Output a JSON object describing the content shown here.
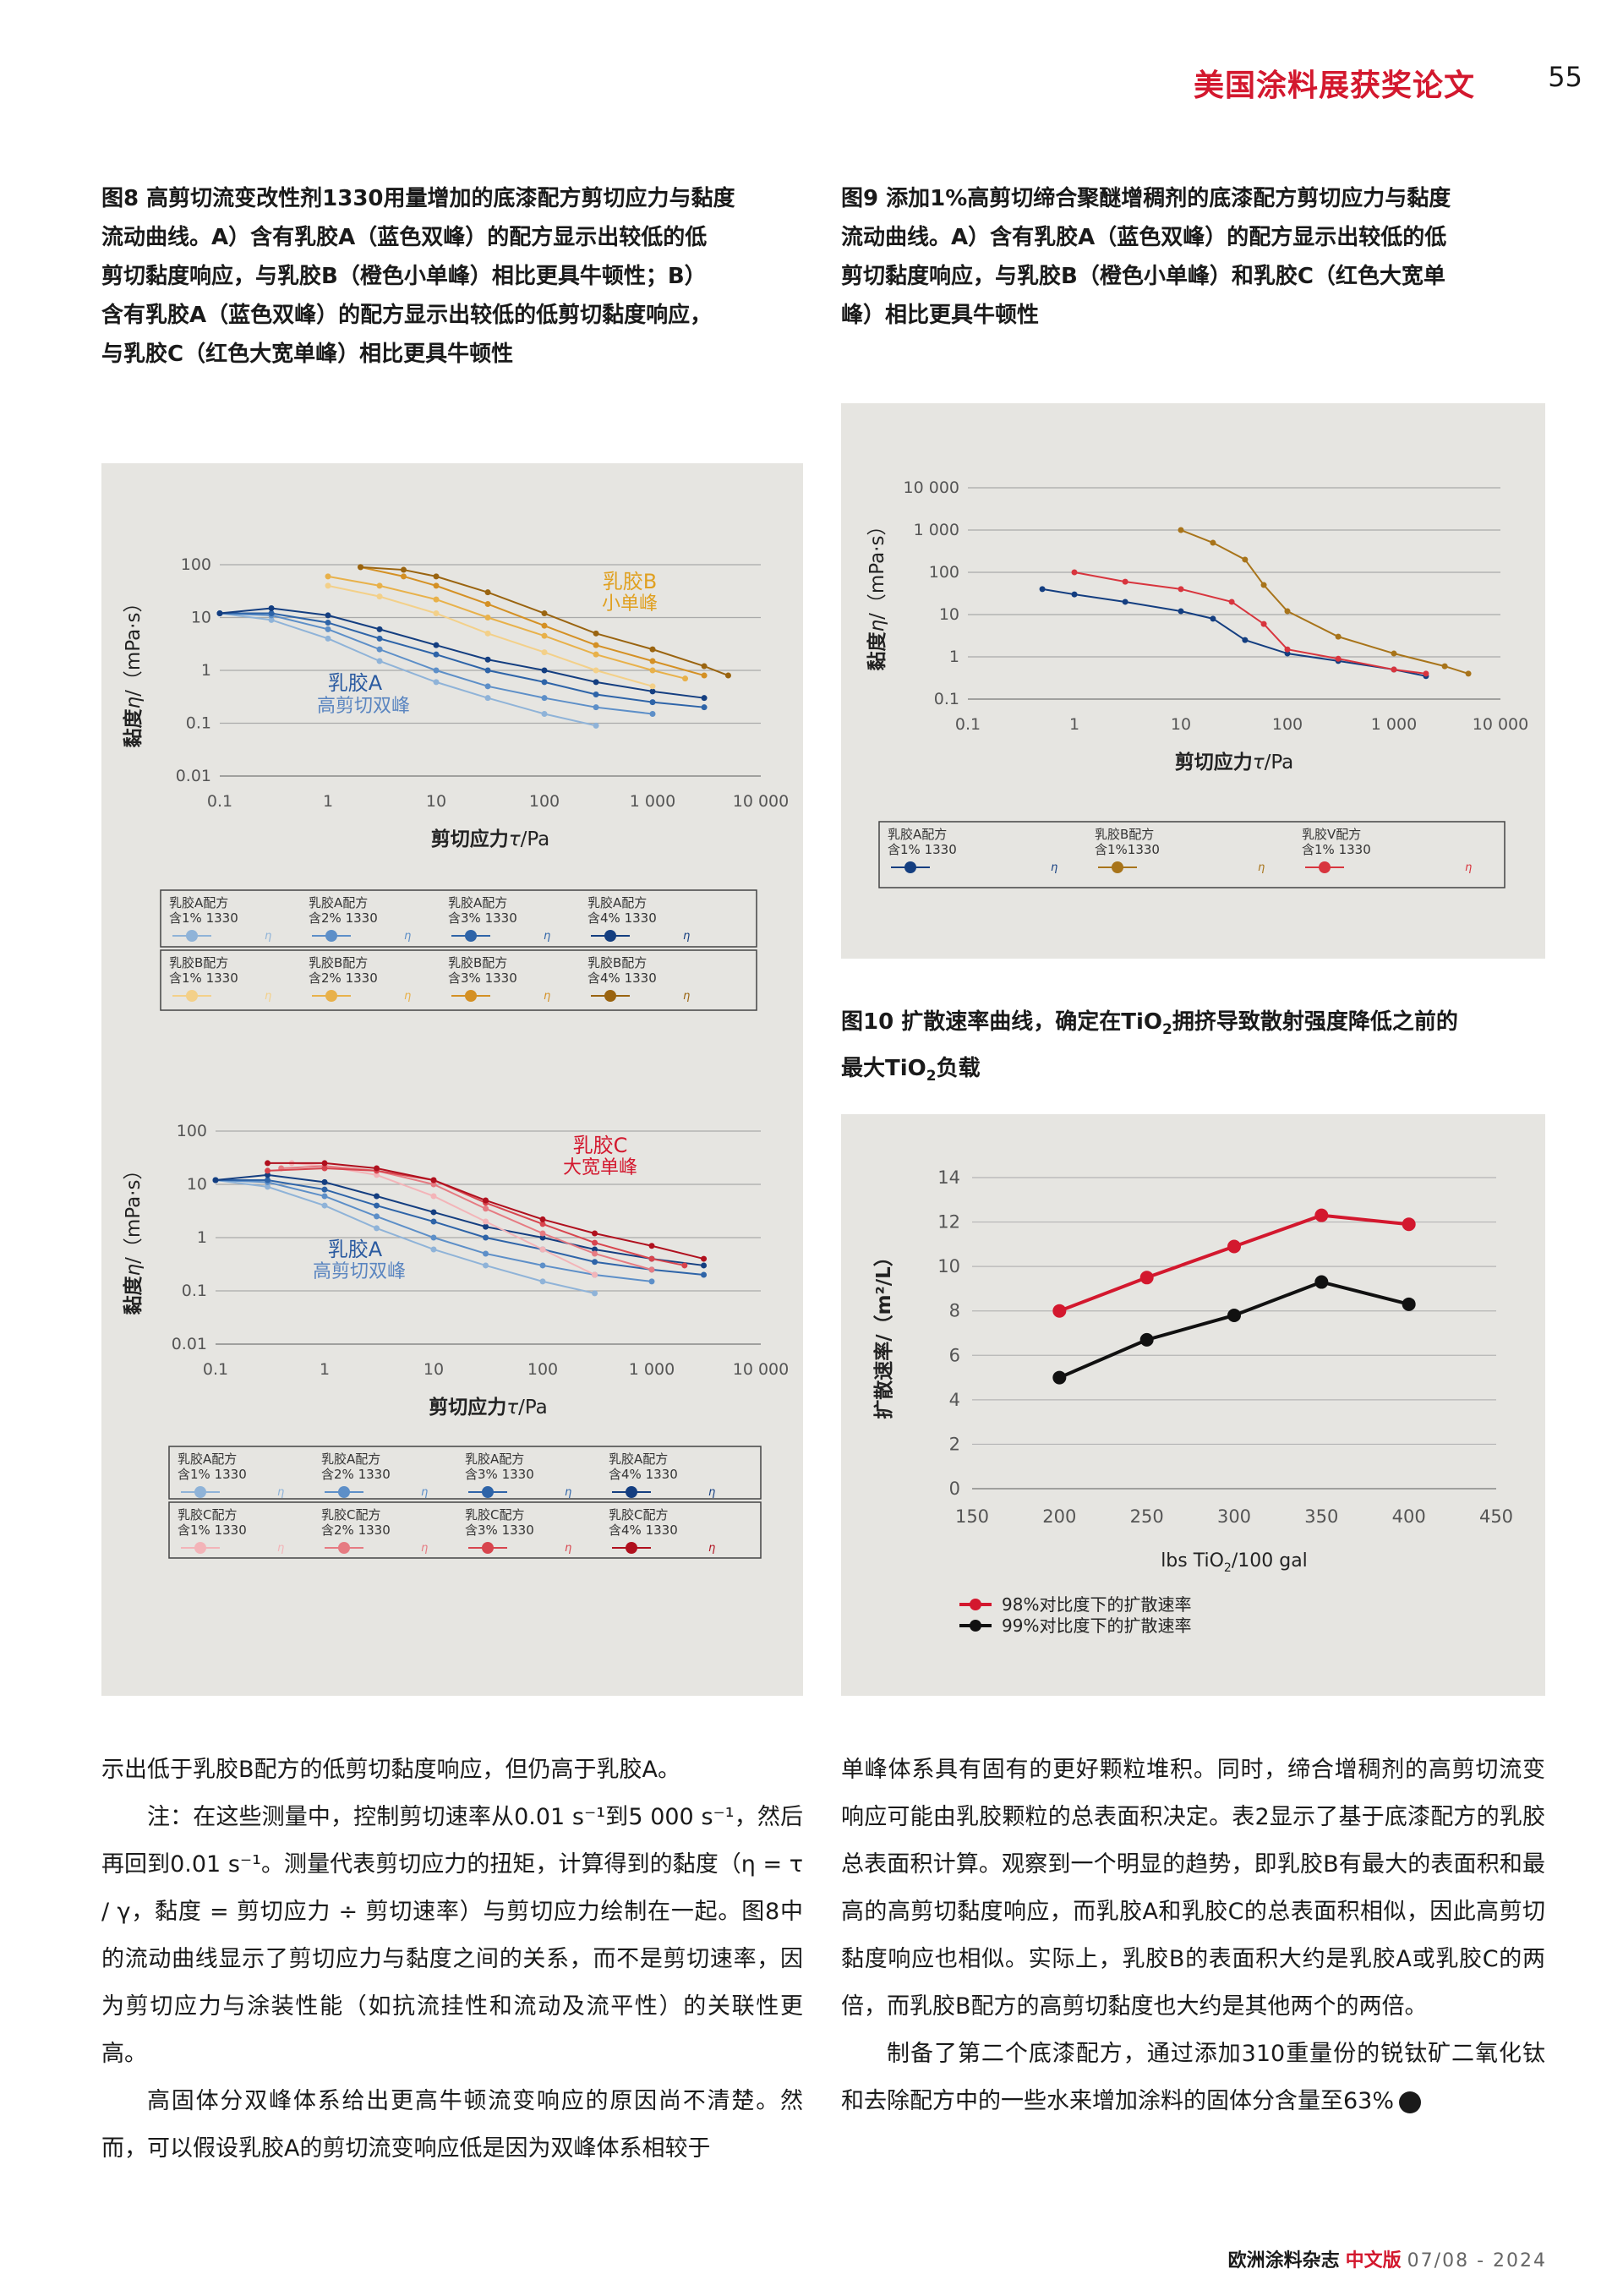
{
  "header": {
    "title": "美国涂料展获奖论文",
    "page_number": "55"
  },
  "fig8": {
    "caption_lines": [
      "图8 高剪切流变改性剂1330用量增加的底漆配方剪切应力与黏度",
      "流动曲线。A）含有乳胶A（蓝色双峰）的配方显示出较低的低",
      "剪切黏度响应，与乳胶B（橙色小单峰）相比更具牛顿性；B）",
      "含有乳胶A（蓝色双峰）的配方显示出较低的低剪切黏度响应，",
      "与乳胶C（红色大宽单峰）相比更具牛顿性"
    ]
  },
  "fig9": {
    "caption_lines": [
      "图9 添加1%高剪切缔合聚醚增稠剂的底漆配方剪切应力与黏度",
      "流动曲线。A）含有乳胶A（蓝色双峰）的配方显示出较低的低",
      "剪切黏度响应，与乳胶B（橙色小单峰）和乳胶C（红色大宽单",
      "峰）相比更具牛顿性"
    ]
  },
  "fig10": {
    "caption_line1_pre": "图10 扩散速率曲线，确定在TiO",
    "caption_line1_sub": "2",
    "caption_line1_post": "拥挤导致散射强度降低之前的",
    "caption_line2_pre": "最大TiO",
    "caption_line2_sub": "2",
    "caption_line2_post": "负载"
  },
  "chart_data": [
    {
      "id": "fig8a",
      "type": "line",
      "xscale": "log",
      "yscale": "log",
      "xlim": [
        0.1,
        10000
      ],
      "ylim": [
        0.01,
        100
      ],
      "xticks": [
        "0.1",
        "1",
        "10",
        "100",
        "1 000",
        "10 000"
      ],
      "yticks": [
        "0.01",
        "0.1",
        "1",
        "10",
        "100"
      ],
      "xlabel_pre": "剪切应力",
      "xlabel_sym": "τ",
      "xlabel_post": "/Pa",
      "ylabel_pre": "黏度",
      "ylabel_sym": "η",
      "ylabel_post": "/（mPa·s）",
      "annotations": [
        {
          "text": "乳胶B",
          "color": "#e0a020"
        },
        {
          "text": "小单峰",
          "color": "#e0a020"
        },
        {
          "text": "乳胶A",
          "color": "#2a5aa0"
        },
        {
          "text": "高剪切双峰",
          "color": "#5a85c0"
        }
      ],
      "legend_rows": [
        [
          {
            "name": "乳胶A配方",
            "sub": "含1% 1330",
            "color": "#8fb3d8"
          },
          {
            "name": "乳胶A配方",
            "sub": "含2% 1330",
            "color": "#5d8fc8"
          },
          {
            "name": "乳胶A配方",
            "sub": "含3% 1330",
            "color": "#2e64a8"
          },
          {
            "name": "乳胶A配方",
            "sub": "含4% 1330",
            "color": "#143e80"
          }
        ],
        [
          {
            "name": "乳胶B配方",
            "sub": "含1% 1330",
            "color": "#f3d089"
          },
          {
            "name": "乳胶B配方",
            "sub": "含2% 1330",
            "color": "#e8b14a"
          },
          {
            "name": "乳胶B配方",
            "sub": "含3% 1330",
            "color": "#d49024"
          },
          {
            "name": "乳胶B配方",
            "sub": "含4% 1330",
            "color": "#9a6410"
          }
        ]
      ],
      "legend_marker": "η",
      "series": [
        {
          "color": "#8fb3d8",
          "x": [
            0.1,
            0.3,
            1,
            3,
            10,
            30,
            100,
            300
          ],
          "y": [
            12,
            9,
            4,
            1.5,
            0.6,
            0.3,
            0.15,
            0.09
          ]
        },
        {
          "color": "#5d8fc8",
          "x": [
            0.1,
            0.3,
            1,
            3,
            10,
            30,
            100,
            300,
            1000
          ],
          "y": [
            12,
            11,
            6,
            2.5,
            1,
            0.5,
            0.3,
            0.2,
            0.15
          ]
        },
        {
          "color": "#2e64a8",
          "x": [
            0.1,
            0.3,
            1,
            3,
            10,
            30,
            100,
            300,
            1000,
            3000
          ],
          "y": [
            12,
            12,
            8,
            4,
            2,
            1,
            0.6,
            0.35,
            0.25,
            0.2
          ]
        },
        {
          "color": "#143e80",
          "x": [
            0.1,
            0.3,
            1,
            3,
            10,
            30,
            100,
            300,
            1000,
            3000
          ],
          "y": [
            12,
            15,
            11,
            6,
            3,
            1.6,
            1,
            0.6,
            0.4,
            0.3
          ]
        },
        {
          "color": "#f3d089",
          "x": [
            1,
            3,
            10,
            30,
            100,
            300,
            1000
          ],
          "y": [
            40,
            25,
            12,
            5,
            2.2,
            1,
            0.5
          ]
        },
        {
          "color": "#e8b14a",
          "x": [
            1,
            3,
            10,
            30,
            100,
            300,
            1000,
            2000
          ],
          "y": [
            60,
            40,
            22,
            10,
            4.5,
            2,
            1,
            0.7
          ]
        },
        {
          "color": "#d49024",
          "x": [
            2,
            5,
            10,
            30,
            100,
            300,
            1000,
            3000
          ],
          "y": [
            90,
            60,
            40,
            18,
            7,
            3,
            1.5,
            0.8
          ]
        },
        {
          "color": "#9a6410",
          "x": [
            2,
            5,
            10,
            30,
            100,
            300,
            1000,
            3000,
            5000
          ],
          "y": [
            90,
            80,
            60,
            30,
            12,
            5,
            2.5,
            1.2,
            0.8
          ]
        }
      ]
    },
    {
      "id": "fig8b",
      "type": "line",
      "xscale": "log",
      "yscale": "log",
      "xlim": [
        0.1,
        10000
      ],
      "ylim": [
        0.01,
        100
      ],
      "xticks": [
        "0.1",
        "1",
        "10",
        "100",
        "1 000",
        "10 000"
      ],
      "yticks": [
        "0.01",
        "0.1",
        "1",
        "10",
        "100"
      ],
      "xlabel_pre": "剪切应力",
      "xlabel_sym": "τ",
      "xlabel_post": "/Pa",
      "ylabel_pre": "黏度",
      "ylabel_sym": "η",
      "ylabel_post": "/（mPa·s）",
      "annotations": [
        {
          "text": "乳胶C",
          "color": "#d3182e"
        },
        {
          "text": "大宽单峰",
          "color": "#d3182e"
        },
        {
          "text": "乳胶A",
          "color": "#2a5aa0"
        },
        {
          "text": "高剪切双峰",
          "color": "#5a85c0"
        }
      ],
      "legend_rows": [
        [
          {
            "name": "乳胶A配方",
            "sub": "含1% 1330",
            "color": "#8fb3d8"
          },
          {
            "name": "乳胶A配方",
            "sub": "含2% 1330",
            "color": "#5d8fc8"
          },
          {
            "name": "乳胶A配方",
            "sub": "含3% 1330",
            "color": "#2e64a8"
          },
          {
            "name": "乳胶A配方",
            "sub": "含4% 1330",
            "color": "#143e80"
          }
        ],
        [
          {
            "name": "乳胶C配方",
            "sub": "含1% 1330",
            "color": "#f3b4b8"
          },
          {
            "name": "乳胶C配方",
            "sub": "含2% 1330",
            "color": "#e67b82"
          },
          {
            "name": "乳胶C配方",
            "sub": "含3% 1330",
            "color": "#d8454e"
          },
          {
            "name": "乳胶C配方",
            "sub": "含4% 1330",
            "color": "#b0101e"
          }
        ]
      ],
      "legend_marker": "η",
      "series": [
        {
          "color": "#8fb3d8",
          "x": [
            0.1,
            0.3,
            1,
            3,
            10,
            30,
            100,
            300
          ],
          "y": [
            12,
            9,
            4,
            1.5,
            0.6,
            0.3,
            0.15,
            0.09
          ]
        },
        {
          "color": "#5d8fc8",
          "x": [
            0.1,
            0.3,
            1,
            3,
            10,
            30,
            100,
            300,
            1000
          ],
          "y": [
            12,
            11,
            6,
            2.5,
            1,
            0.5,
            0.3,
            0.2,
            0.15
          ]
        },
        {
          "color": "#2e64a8",
          "x": [
            0.1,
            0.3,
            1,
            3,
            10,
            30,
            100,
            300,
            1000,
            3000
          ],
          "y": [
            12,
            12,
            8,
            4,
            2,
            1,
            0.6,
            0.35,
            0.25,
            0.2
          ]
        },
        {
          "color": "#143e80",
          "x": [
            0.1,
            0.3,
            1,
            3,
            10,
            30,
            100,
            300,
            1000,
            3000
          ],
          "y": [
            12,
            15,
            11,
            6,
            3,
            1.6,
            1,
            0.6,
            0.4,
            0.3
          ]
        },
        {
          "color": "#f3b4b8",
          "x": [
            0.5,
            1,
            3,
            10,
            30,
            100,
            300
          ],
          "y": [
            25,
            22,
            15,
            6,
            2,
            0.6,
            0.2
          ]
        },
        {
          "color": "#e67b82",
          "x": [
            0.4,
            1,
            3,
            10,
            30,
            100,
            300,
            1000
          ],
          "y": [
            20,
            22,
            18,
            10,
            3.5,
            1.2,
            0.5,
            0.25
          ]
        },
        {
          "color": "#d8454e",
          "x": [
            0.3,
            1,
            3,
            10,
            30,
            100,
            300,
            1000,
            2000
          ],
          "y": [
            18,
            20,
            18,
            12,
            4.5,
            1.8,
            0.8,
            0.4,
            0.3
          ]
        },
        {
          "color": "#b0101e",
          "x": [
            0.3,
            1,
            3,
            10,
            30,
            100,
            300,
            1000,
            3000
          ],
          "y": [
            25,
            25,
            20,
            12,
            5,
            2.2,
            1.2,
            0.7,
            0.4
          ]
        }
      ]
    },
    {
      "id": "fig9",
      "type": "line",
      "xscale": "log",
      "yscale": "log",
      "xlim": [
        0.1,
        10000
      ],
      "ylim": [
        0.1,
        10000
      ],
      "xticks": [
        "0.1",
        "1",
        "10",
        "100",
        "1 000",
        "10 000"
      ],
      "yticks": [
        "0.1",
        "1",
        "10",
        "100",
        "1 000",
        "10 000"
      ],
      "xlabel_pre": "剪切应力",
      "xlabel_sym": "τ",
      "xlabel_post": "/Pa",
      "ylabel_pre": "黏度",
      "ylabel_sym": "η",
      "ylabel_post": "/（mPa·s）",
      "legend_rows": [
        [
          {
            "name": "乳胶A配方",
            "sub": "含1% 1330",
            "color": "#143e80"
          },
          {
            "name": "乳胶B配方",
            "sub": "含1%1330",
            "color": "#a8741a"
          },
          {
            "name": "乳胶V配方",
            "sub": "含1% 1330",
            "color": "#d8353e"
          }
        ]
      ],
      "legend_marker": "η",
      "series": [
        {
          "color": "#143e80",
          "x": [
            0.5,
            1,
            3,
            10,
            20,
            40,
            100,
            300,
            1000,
            2000
          ],
          "y": [
            40,
            30,
            20,
            12,
            8,
            2.5,
            1.2,
            0.8,
            0.5,
            0.35
          ]
        },
        {
          "color": "#a8741a",
          "x": [
            10,
            20,
            40,
            60,
            100,
            300,
            1000,
            3000,
            5000
          ],
          "y": [
            1000,
            500,
            200,
            50,
            12,
            3,
            1.2,
            0.6,
            0.4
          ]
        },
        {
          "color": "#d8353e",
          "x": [
            1,
            3,
            10,
            30,
            60,
            100,
            300,
            1000,
            2000
          ],
          "y": [
            100,
            60,
            40,
            20,
            6,
            1.5,
            0.9,
            0.5,
            0.4
          ]
        }
      ]
    },
    {
      "id": "fig10",
      "type": "line",
      "xlim": [
        150,
        450
      ],
      "ylim": [
        0,
        14
      ],
      "xticks": [
        "150",
        "200",
        "250",
        "300",
        "350",
        "400",
        "450"
      ],
      "yticks": [
        "0",
        "2",
        "4",
        "6",
        "8",
        "10",
        "12",
        "14"
      ],
      "xlabel_pre": "lbs TiO",
      "xlabel_sub": "2",
      "xlabel_post": "/100 gal",
      "ylabel": "扩散速率/（m²/L）",
      "grid": true,
      "legend_position": "bottom-left",
      "series": [
        {
          "name": "98%对比度下的扩散速率",
          "color": "#d3182e",
          "x": [
            200,
            250,
            300,
            350,
            400
          ],
          "y": [
            8.0,
            9.5,
            10.9,
            12.3,
            11.9
          ]
        },
        {
          "name": "99%对比度下的扩散速率",
          "color": "#111111",
          "x": [
            200,
            250,
            300,
            350,
            400
          ],
          "y": [
            5.0,
            6.7,
            7.8,
            9.3,
            8.3
          ]
        }
      ]
    }
  ],
  "body_left": [
    "示出低于乳胶B配方的低剪切黏度响应，但仍高于乳胶A。",
    "注：在这些测量中，控制剪切速率从0.01 s⁻¹到5 000 s⁻¹，然后再回到0.01 s⁻¹。测量代表剪切应力的扭矩，计算得到的黏度（η = τ / γ，黏度 = 剪切应力 ÷ 剪切速率）与剪切应力绘制在一起。图8中的流动曲线显示了剪切应力与黏度之间的关系，而不是剪切速率，因为剪切应力与涂装性能（如抗流挂性和流动及流平性）的关联性更高。",
    "高固体分双峰体系给出更高牛顿流变响应的原因尚不清楚。然而，可以假设乳胶A的剪切流变响应低是因为双峰体系相较于"
  ],
  "body_right": [
    "单峰体系具有固有的更好颗粒堆积。同时，缔合增稠剂的高剪切流变响应可能由乳胶颗粒的总表面积决定。表2显示了基于底漆配方的乳胶总表面积计算。观察到一个明显的趋势，即乳胶B有最大的表面积和最高的高剪切黏度响应，而乳胶A和乳胶C的总表面积相似，因此高剪切黏度响应也相似。实际上，乳胶B的表面积大约是乳胶A或乳胶C的两倍，而乳胶B配方的高剪切黏度也大约是其他两个的两倍。",
    "制备了第二个底漆配方，通过添加310重量份的锐钛矿二氧化钛和去除配方中的一些水来增加涂料的固体分含量至63%"
  ],
  "footer": {
    "magazine": "欧洲涂料杂志",
    "edition": "中文版",
    "date": "07/08 - 2024"
  }
}
